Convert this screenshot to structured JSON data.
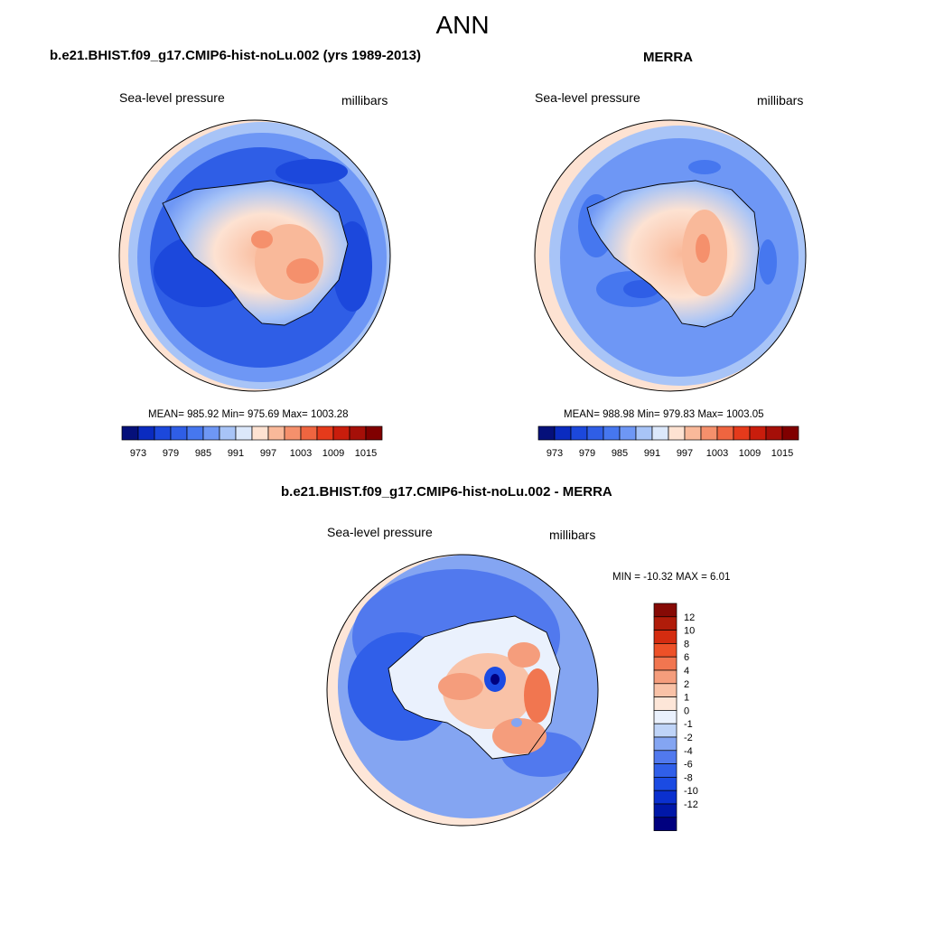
{
  "figure": {
    "title": "ANN"
  },
  "colors": {
    "abs_palette": [
      "#05107a",
      "#0a2bc0",
      "#1c48dc",
      "#2f5ee6",
      "#4677ef",
      "#6e97f5",
      "#a8c4f7",
      "#dce8fb",
      "#fde2d2",
      "#f9b99a",
      "#f5906c",
      "#ef6540",
      "#e53a1b",
      "#c91d0c",
      "#a50f08",
      "#800000"
    ],
    "diff_palette": [
      "#00007f",
      "#0017a8",
      "#0a30cf",
      "#1b4be3",
      "#305fe9",
      "#5179ee",
      "#84a5f2",
      "#bfd4f8",
      "#eaf1fd",
      "#fde6d8",
      "#f9c2a7",
      "#f59d7c",
      "#f17650",
      "#ed5128",
      "#d42c10",
      "#b01c0a",
      "#860a05"
    ]
  },
  "chart_data": [
    {
      "type": "heatmap",
      "name": "model-map",
      "title": "b.e21.BHIST.f09_g17.CMIP6-hist-noLu.002 (yrs 1989-2013)",
      "left_label": "Sea-level pressure",
      "right_label": "millibars",
      "stats_text": "MEAN= 985.92  Min= 975.69  Max= 1003.28",
      "mean": 985.92,
      "min": 975.69,
      "max": 1003.28,
      "colorbar": {
        "orientation": "horizontal",
        "levels": [
          973,
          976,
          979,
          982,
          985,
          988,
          991,
          994,
          997,
          1000,
          1003,
          1006,
          1009,
          1012,
          1015
        ],
        "tick_labels": [
          "973",
          "979",
          "985",
          "991",
          "997",
          "1003",
          "1009",
          "1015"
        ]
      }
    },
    {
      "type": "heatmap",
      "name": "merra-map",
      "title": "MERRA",
      "left_label": "Sea-level pressure",
      "right_label": "millibars",
      "stats_text": "MEAN= 988.98  Min= 979.83  Max= 1003.05",
      "mean": 988.98,
      "min": 979.83,
      "max": 1003.05,
      "colorbar": {
        "orientation": "horizontal",
        "levels": [
          973,
          976,
          979,
          982,
          985,
          988,
          991,
          994,
          997,
          1000,
          1003,
          1006,
          1009,
          1012,
          1015
        ],
        "tick_labels": [
          "973",
          "979",
          "985",
          "991",
          "997",
          "1003",
          "1009",
          "1015"
        ]
      }
    },
    {
      "type": "heatmap",
      "name": "diff-map",
      "title": "b.e21.BHIST.f09_g17.CMIP6-hist-noLu.002 - MERRA",
      "left_label": "Sea-level pressure",
      "right_label": "millibars",
      "stats_text": "MIN = -10.32 MAX =   6.01",
      "min": -10.32,
      "max": 6.01,
      "colorbar": {
        "orientation": "vertical",
        "levels": [
          12,
          10,
          8,
          6,
          4,
          2,
          1,
          0,
          -1,
          -2,
          -4,
          -6,
          -8,
          -10,
          -12
        ],
        "tick_labels": [
          "12",
          "10",
          "8",
          "6",
          "4",
          "2",
          "1",
          "0",
          "-1",
          "-2",
          "-4",
          "-6",
          "-8",
          "-10",
          "-12"
        ]
      }
    }
  ]
}
